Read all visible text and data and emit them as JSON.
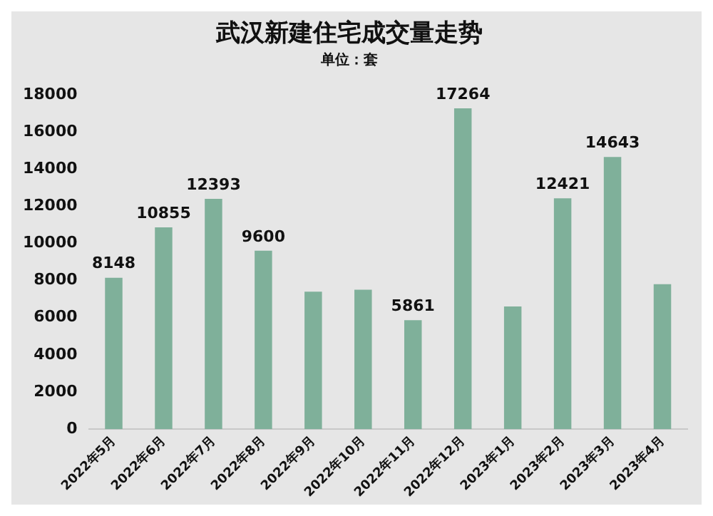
{
  "chart_data": {
    "type": "bar",
    "title": "武汉新建住宅成交量走势",
    "subtitle": "单位：套",
    "categories": [
      "2022年5月",
      "2022年6月",
      "2022年7月",
      "2022年8月",
      "2022年9月",
      "2022年10月",
      "2022年11月",
      "2022年12月",
      "2023年1月",
      "2023年2月",
      "2023年3月",
      "2023年4月"
    ],
    "values": [
      8148,
      10855,
      12393,
      9600,
      7400,
      7500,
      5861,
      17264,
      6600,
      12421,
      14643,
      7800
    ],
    "value_labels": [
      "8148",
      "10855",
      "12393",
      "9600",
      null,
      null,
      "5861",
      "17264",
      null,
      "12421",
      "14643",
      null
    ],
    "color": "#7fb09a",
    "ylim": [
      0,
      18000
    ],
    "yticks": [
      0,
      2000,
      4000,
      6000,
      8000,
      10000,
      12000,
      14000,
      16000,
      18000
    ],
    "grid": false,
    "legend": false
  }
}
